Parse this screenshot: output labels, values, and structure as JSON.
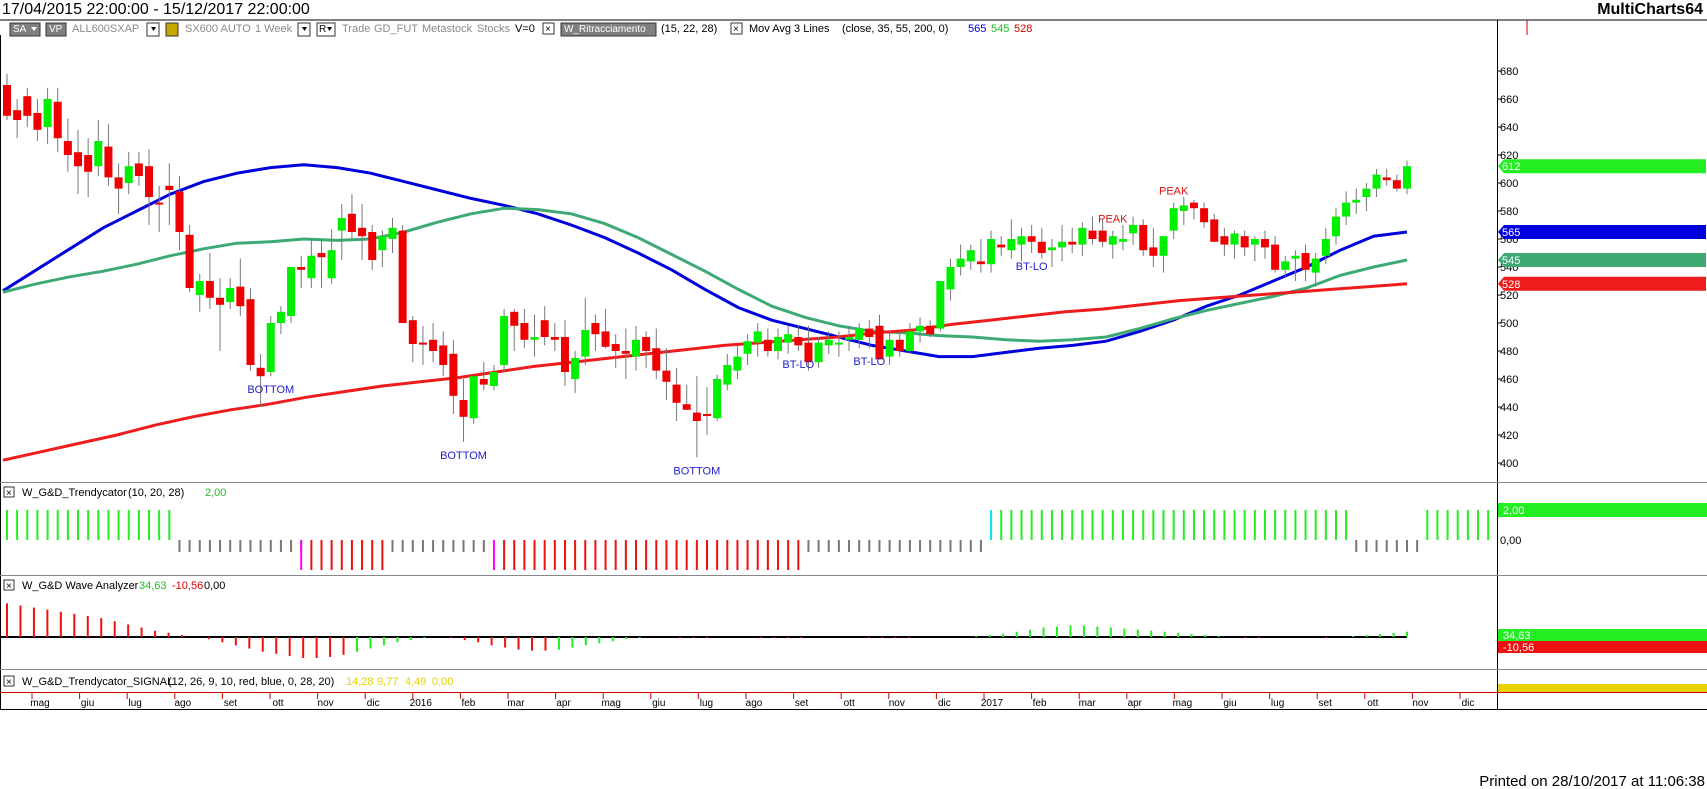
{
  "header": {
    "range": "17/04/2015 22:00:00 - 15/12/2017 22:00:00",
    "app": "MultiCharts64"
  },
  "toolbar": {
    "items": [
      {
        "text": "SA",
        "kind": "btn",
        "x": 10,
        "w": 30,
        "arrow": true
      },
      {
        "text": "VP",
        "kind": "btn",
        "x": 46,
        "w": 20
      },
      {
        "text": "ALL600SXAP",
        "kind": "grey",
        "x": 72
      },
      {
        "text": "",
        "kind": "box",
        "x": 147,
        "w": 12,
        "arrow": true
      },
      {
        "text": "",
        "kind": "ybox",
        "x": 166,
        "w": 12
      },
      {
        "text": "SX600 AUTO",
        "kind": "grey",
        "x": 185
      },
      {
        "text": "1 Week",
        "kind": "grey",
        "x": 255
      },
      {
        "text": "",
        "kind": "box",
        "x": 298,
        "w": 12,
        "arrow": true
      },
      {
        "text": "R",
        "kind": "box",
        "x": 317,
        "w": 18,
        "arrow": true
      },
      {
        "text": "Trade",
        "kind": "grey",
        "x": 342
      },
      {
        "text": "GD_FUT",
        "kind": "grey",
        "x": 374
      },
      {
        "text": "Metastock",
        "kind": "grey",
        "x": 422
      },
      {
        "text": "Stocks",
        "kind": "grey",
        "x": 477
      },
      {
        "text": "V=0",
        "kind": "black",
        "x": 515
      },
      {
        "text": "×",
        "kind": "xbox",
        "x": 543
      },
      {
        "text": "W_Ritracciamento",
        "kind": "dark",
        "x": 561,
        "w": 95
      },
      {
        "text": "(15,  22,  28)",
        "kind": "black",
        "x": 661
      },
      {
        "text": "×",
        "kind": "xbox",
        "x": 731
      },
      {
        "text": "Mov Avg 3 Lines",
        "kind": "black",
        "x": 749
      },
      {
        "text": "(close,  35,  55,  200,  0)",
        "kind": "black",
        "x": 842
      },
      {
        "text": "565",
        "kind": "blue",
        "x": 968
      },
      {
        "text": "545",
        "kind": "green",
        "x": 991
      },
      {
        "text": "528",
        "kind": "red",
        "x": 1014
      }
    ]
  },
  "chart_data": {
    "type": "candlestick",
    "timeframe": "1 Week",
    "price_axis": {
      "ticks": [
        400,
        420,
        440,
        460,
        480,
        500,
        520,
        540,
        560,
        580,
        600,
        620,
        640,
        660,
        680
      ],
      "range": [
        392,
        722
      ]
    },
    "date_axis": [
      "mag",
      "giu",
      "lug",
      "ago",
      "set",
      "ott",
      "nov",
      "dic",
      "2016",
      "feb",
      "mar",
      "apr",
      "mag",
      "giu",
      "lug",
      "ago",
      "set",
      "ott",
      "nov",
      "dic",
      "2017",
      "feb",
      "mar",
      "apr",
      "mag",
      "giu",
      "lug",
      "set",
      "ott",
      "nov",
      "dic"
    ],
    "ohlc": [
      [
        670,
        678,
        645,
        648
      ],
      [
        652,
        660,
        632,
        645
      ],
      [
        662,
        668,
        640,
        648
      ],
      [
        650,
        660,
        630,
        638
      ],
      [
        640,
        668,
        628,
        660
      ],
      [
        658,
        668,
        622,
        632
      ],
      [
        630,
        646,
        608,
        620
      ],
      [
        622,
        638,
        592,
        612
      ],
      [
        620,
        632,
        590,
        608
      ],
      [
        612,
        645,
        605,
        630
      ],
      [
        626,
        642,
        598,
        604
      ],
      [
        604,
        614,
        578,
        596
      ],
      [
        600,
        622,
        592,
        612
      ],
      [
        614,
        622,
        598,
        605
      ],
      [
        612,
        624,
        570,
        590
      ],
      [
        586,
        598,
        565,
        585
      ],
      [
        598,
        614,
        570,
        595
      ],
      [
        594,
        605,
        552,
        565
      ],
      [
        563,
        570,
        522,
        525
      ],
      [
        520,
        535,
        508,
        530
      ],
      [
        530,
        550,
        510,
        518
      ],
      [
        518,
        532,
        480,
        513
      ],
      [
        515,
        532,
        510,
        525
      ],
      [
        526,
        546,
        505,
        512
      ],
      [
        517,
        525,
        466,
        470
      ],
      [
        468,
        478,
        440,
        462
      ],
      [
        465,
        505,
        462,
        500
      ],
      [
        500,
        512,
        492,
        508
      ],
      [
        505,
        538,
        500,
        540
      ],
      [
        540,
        548,
        525,
        538
      ],
      [
        532,
        560,
        525,
        548
      ],
      [
        550,
        560,
        525,
        547
      ],
      [
        532,
        567,
        528,
        552
      ],
      [
        566,
        585,
        545,
        575
      ],
      [
        578,
        592,
        560,
        565
      ],
      [
        568,
        585,
        545,
        562
      ],
      [
        565,
        570,
        538,
        545
      ],
      [
        552,
        566,
        540,
        562
      ],
      [
        560,
        575,
        550,
        568
      ],
      [
        566,
        570,
        500,
        500
      ],
      [
        502,
        505,
        472,
        485
      ],
      [
        486,
        498,
        470,
        485
      ],
      [
        488,
        500,
        472,
        480
      ],
      [
        484,
        494,
        462,
        470
      ],
      [
        478,
        488,
        435,
        448
      ],
      [
        445,
        460,
        415,
        433
      ],
      [
        432,
        462,
        428,
        462
      ],
      [
        460,
        472,
        452,
        456
      ],
      [
        455,
        470,
        452,
        465
      ],
      [
        470,
        510,
        465,
        505
      ],
      [
        508,
        510,
        480,
        498
      ],
      [
        500,
        510,
        482,
        488
      ],
      [
        488,
        506,
        476,
        490
      ],
      [
        502,
        512,
        484,
        490
      ],
      [
        490,
        500,
        480,
        488
      ],
      [
        490,
        502,
        455,
        465
      ],
      [
        460,
        480,
        450,
        475
      ],
      [
        476,
        518,
        470,
        495
      ],
      [
        500,
        506,
        480,
        492
      ],
      [
        494,
        510,
        482,
        483
      ],
      [
        485,
        492,
        468,
        480
      ],
      [
        480,
        496,
        460,
        478
      ],
      [
        476,
        498,
        466,
        488
      ],
      [
        490,
        494,
        468,
        480
      ],
      [
        482,
        496,
        460,
        466
      ],
      [
        466,
        482,
        445,
        458
      ],
      [
        456,
        468,
        430,
        443
      ],
      [
        442,
        456,
        438,
        438
      ],
      [
        436,
        462,
        404,
        430
      ],
      [
        435,
        454,
        420,
        434
      ],
      [
        432,
        463,
        430,
        460
      ],
      [
        456,
        478,
        452,
        470
      ],
      [
        466,
        484,
        460,
        476
      ],
      [
        478,
        492,
        470,
        487
      ],
      [
        486,
        500,
        476,
        494
      ],
      [
        488,
        496,
        476,
        480
      ],
      [
        480,
        496,
        474,
        490
      ],
      [
        486,
        498,
        478,
        492
      ],
      [
        490,
        498,
        480,
        484
      ],
      [
        486,
        498,
        466,
        472
      ],
      [
        472,
        490,
        468,
        486
      ],
      [
        484,
        494,
        478,
        488
      ],
      [
        486,
        494,
        476,
        486
      ],
      [
        488,
        498,
        480,
        490
      ],
      [
        488,
        500,
        482,
        496
      ],
      [
        496,
        502,
        482,
        490
      ],
      [
        498,
        506,
        474,
        474
      ],
      [
        476,
        494,
        470,
        488
      ],
      [
        488,
        494,
        476,
        480
      ],
      [
        480,
        500,
        478,
        494
      ],
      [
        494,
        504,
        486,
        498
      ],
      [
        498,
        502,
        490,
        492
      ],
      [
        496,
        530,
        494,
        530
      ],
      [
        524,
        546,
        516,
        540
      ],
      [
        540,
        556,
        534,
        546
      ],
      [
        544,
        556,
        538,
        552
      ],
      [
        544,
        560,
        536,
        542
      ],
      [
        542,
        566,
        536,
        560
      ],
      [
        556,
        562,
        548,
        554
      ],
      [
        552,
        574,
        546,
        560
      ],
      [
        556,
        568,
        544,
        562
      ],
      [
        562,
        570,
        550,
        558
      ],
      [
        558,
        568,
        546,
        550
      ],
      [
        552,
        560,
        540,
        554
      ],
      [
        554,
        570,
        544,
        558
      ],
      [
        558,
        568,
        550,
        556
      ],
      [
        556,
        572,
        548,
        568
      ],
      [
        566,
        576,
        556,
        560
      ],
      [
        566,
        574,
        554,
        558
      ],
      [
        556,
        566,
        546,
        562
      ],
      [
        558,
        570,
        552,
        560
      ],
      [
        564,
        576,
        556,
        570
      ],
      [
        570,
        574,
        548,
        552
      ],
      [
        554,
        568,
        540,
        548
      ],
      [
        548,
        562,
        536,
        562
      ],
      [
        566,
        586,
        560,
        582
      ],
      [
        580,
        590,
        570,
        584
      ],
      [
        586,
        588,
        574,
        582
      ],
      [
        582,
        586,
        568,
        572
      ],
      [
        574,
        578,
        558,
        558
      ],
      [
        562,
        568,
        548,
        556
      ],
      [
        556,
        566,
        546,
        564
      ],
      [
        562,
        566,
        548,
        554
      ],
      [
        556,
        562,
        544,
        560
      ],
      [
        560,
        566,
        546,
        554
      ],
      [
        556,
        562,
        536,
        538
      ],
      [
        538,
        548,
        532,
        544
      ],
      [
        546,
        552,
        530,
        548
      ],
      [
        550,
        556,
        530,
        538
      ],
      [
        536,
        550,
        526,
        546
      ],
      [
        548,
        568,
        542,
        560
      ],
      [
        562,
        582,
        556,
        576
      ],
      [
        576,
        594,
        570,
        586
      ],
      [
        586,
        596,
        578,
        588
      ],
      [
        590,
        600,
        580,
        596
      ],
      [
        596,
        610,
        590,
        606
      ],
      [
        604,
        610,
        598,
        602
      ],
      [
        602,
        606,
        594,
        596
      ],
      [
        596,
        616,
        592,
        612
      ]
    ],
    "labels": [
      {
        "text": "BOTTOM",
        "i": 26,
        "pos": "below"
      },
      {
        "text": "BOTTOM",
        "i": 45,
        "pos": "below"
      },
      {
        "text": "BOTTOM",
        "i": 68,
        "pos": "below"
      },
      {
        "text": "BT-LO",
        "i": 78,
        "pos": "below"
      },
      {
        "text": "BT-LO",
        "i": 85,
        "pos": "below"
      },
      {
        "text": "BT-LO",
        "i": 101,
        "pos": "below"
      },
      {
        "text": "PEAK",
        "i": 109,
        "pos": "above"
      },
      {
        "text": "PEAK",
        "i": 115,
        "pos": "above"
      }
    ],
    "moving_averages": [
      {
        "name": "565",
        "color": "#0000dd",
        "values": [
          523,
          538,
          553,
          568,
          580,
          592,
          601,
          607,
          611,
          613,
          611,
          607,
          601,
          595,
          589,
          584,
          578,
          570,
          561,
          550,
          538,
          524,
          511,
          502,
          496,
          490,
          484,
          480,
          476,
          476,
          479,
          482,
          484,
          487,
          494,
          502,
          512,
          520,
          530,
          540,
          552,
          562,
          565
        ]
      },
      {
        "name": "545",
        "color": "#3daa74",
        "values": [
          522,
          528,
          533,
          537,
          542,
          548,
          553,
          557,
          558,
          560,
          559,
          560,
          565,
          572,
          578,
          582,
          581,
          578,
          571,
          561,
          549,
          537,
          524,
          512,
          504,
          498,
          494,
          493,
          491,
          490,
          488,
          487,
          488,
          490,
          496,
          503,
          509,
          514,
          519,
          525,
          534,
          540,
          545
        ]
      },
      {
        "name": "528",
        "color": "#ee1c1c",
        "values": [
          402,
          408,
          414,
          420,
          427,
          433,
          438,
          442,
          447,
          451,
          455,
          458,
          461,
          465,
          469,
          472,
          475,
          478,
          481,
          484,
          486,
          488,
          490,
          493,
          495,
          499,
          502,
          505,
          508,
          510,
          513,
          516,
          518,
          520,
          522,
          524,
          526,
          528
        ]
      }
    ],
    "price_boxes": [
      {
        "text": "612",
        "value": 612,
        "color": "#22ee22",
        "fg": "#ffffff"
      },
      {
        "text": "565",
        "value": 565,
        "color": "#0000dd",
        "fg": "#ffffff"
      },
      {
        "text": "545",
        "value": 545,
        "color": "#3daa74",
        "fg": "#ffffff"
      },
      {
        "text": "528",
        "value": 528,
        "color": "#ee1c1c",
        "fg": "#ffffff"
      }
    ]
  },
  "trendycator": {
    "title": "W_G&D_Trendycator",
    "params": "(10,  20,  28)",
    "value": "2,00",
    "axis": [
      "2,00",
      "0,00"
    ],
    "segments": [
      {
        "from": 0,
        "to": 16,
        "state": "green"
      },
      {
        "from": 17,
        "to": 29,
        "state": "grey"
      },
      {
        "from": 29,
        "to": 29,
        "state": "magenta"
      },
      {
        "from": 30,
        "to": 37,
        "state": "red"
      },
      {
        "from": 38,
        "to": 47,
        "state": "grey"
      },
      {
        "from": 48,
        "to": 48,
        "state": "magenta"
      },
      {
        "from": 49,
        "to": 78,
        "state": "red"
      },
      {
        "from": 79,
        "to": 96,
        "state": "grey"
      },
      {
        "from": 97,
        "to": 97,
        "state": "cyan"
      },
      {
        "from": 98,
        "to": 132,
        "state": "green"
      },
      {
        "from": 133,
        "to": 139,
        "state": "grey"
      },
      {
        "from": 140,
        "to": 146,
        "state": "green"
      }
    ]
  },
  "wave": {
    "title": "W_G&D Wave Analyzer",
    "v1": "34,63",
    "v2": "-10,56",
    "v3": "0,00",
    "axis": [
      "34,63",
      "-10,56"
    ],
    "values": [
      32,
      30,
      28,
      26,
      24,
      22,
      20,
      18,
      15,
      12,
      9,
      6,
      4,
      2,
      0,
      -2,
      -5,
      -8,
      -11,
      -14,
      -16,
      -18,
      -20,
      -20,
      -19,
      -17,
      -14,
      -11,
      -8,
      -5,
      -3,
      -1,
      0,
      -1,
      -3,
      -5,
      -8,
      -10,
      -12,
      -13,
      -13,
      -12,
      -10,
      -8,
      -6,
      -4,
      -2,
      -1,
      0,
      0,
      -1,
      -1,
      -1,
      0,
      0,
      0,
      -1,
      -1,
      -1,
      -1,
      0,
      0,
      0,
      0,
      -1,
      -1,
      -1,
      -1,
      0,
      0,
      0,
      0,
      1,
      2,
      3,
      5,
      7,
      9,
      10,
      11,
      11,
      10,
      9,
      8,
      7,
      6,
      5,
      4,
      3,
      2,
      1,
      0,
      -1,
      -1,
      0,
      0,
      0,
      0,
      -1,
      0,
      1,
      2,
      3,
      4,
      5
    ]
  },
  "signal": {
    "title": "W_G&D_Trendycator_SIGNAL",
    "params": "(12,  26,  9,  10,  red,  blue,  0,  28,  20)",
    "v1": "14,28",
    "v2": "9,77",
    "v3": "4,49",
    "v4": "0,00"
  },
  "footer": {
    "printed": "Printed on 28/10/2017 at 11:06:38"
  },
  "colors": {
    "up": "#00ee00",
    "down": "#ee0000",
    "accent_red": "#cc0000"
  }
}
